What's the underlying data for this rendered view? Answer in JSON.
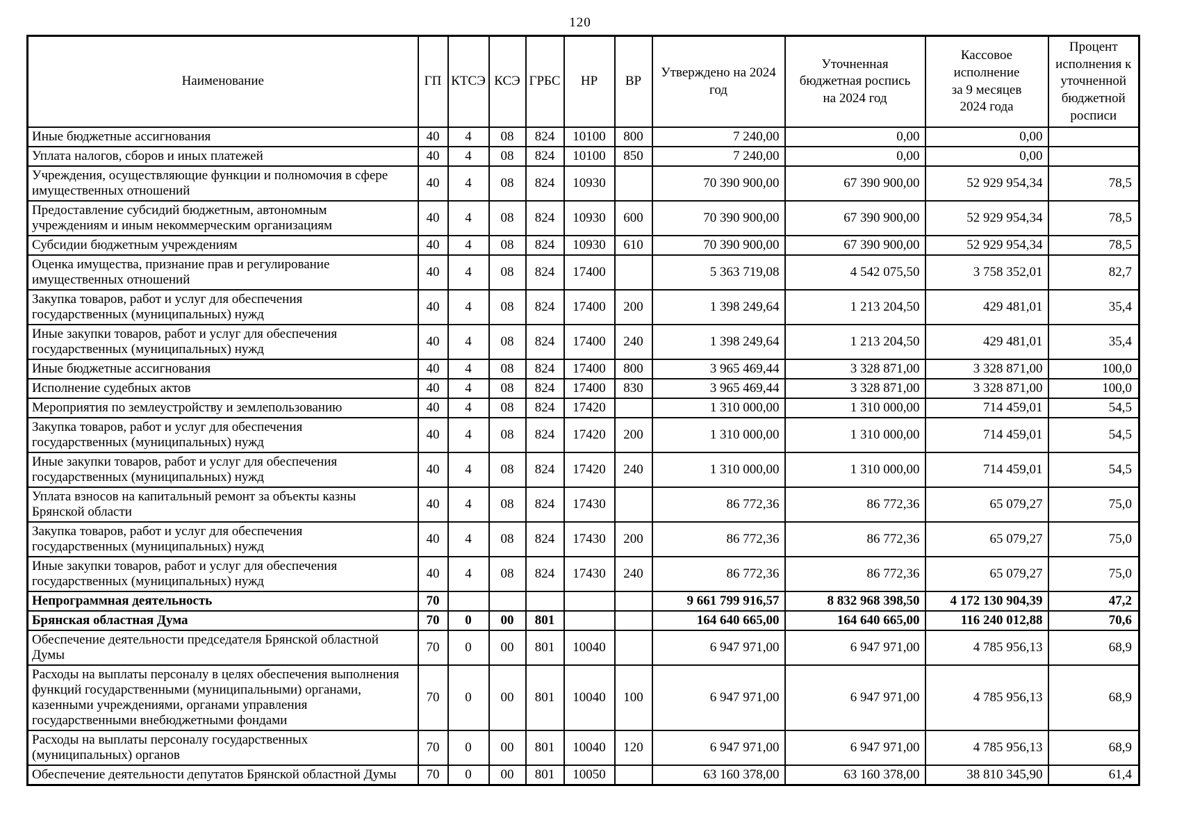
{
  "page_number": "120",
  "table": {
    "headers": [
      "Наименование",
      "ГП",
      "КТСЭ",
      "КСЭ",
      "ГРБС",
      "НР",
      "ВР",
      "Утверждено на 2024\nгод",
      "Уточненная\nбюджетная роспись\nна 2024 год",
      "Кассовое\nисполнение\nза 9 месяцев\n2024 года",
      "Процент\nисполнения к\nуточненной\nбюджетной\nросписи"
    ],
    "rows": [
      {
        "name": "Иные бюджетные ассигнования",
        "gp": "40",
        "ktse": "4",
        "kse": "08",
        "grbs": "824",
        "nr": "10100",
        "vr": "800",
        "approved": "7 240,00",
        "revised": "0,00",
        "cash": "0,00",
        "percent": "",
        "bold": false
      },
      {
        "name": "Уплата налогов, сборов и иных платежей",
        "gp": "40",
        "ktse": "4",
        "kse": "08",
        "grbs": "824",
        "nr": "10100",
        "vr": "850",
        "approved": "7 240,00",
        "revised": "0,00",
        "cash": "0,00",
        "percent": "",
        "bold": false
      },
      {
        "name": "Учреждения, осуществляющие функции и полномочия в сфере\nимущественных отношений",
        "gp": "40",
        "ktse": "4",
        "kse": "08",
        "grbs": "824",
        "nr": "10930",
        "vr": "",
        "approved": "70 390 900,00",
        "revised": "67 390 900,00",
        "cash": "52 929 954,34",
        "percent": "78,5",
        "bold": false
      },
      {
        "name": "Предоставление субсидий бюджетным, автономным\nучреждениям и иным некоммерческим организациям",
        "gp": "40",
        "ktse": "4",
        "kse": "08",
        "grbs": "824",
        "nr": "10930",
        "vr": "600",
        "approved": "70 390 900,00",
        "revised": "67 390 900,00",
        "cash": "52 929 954,34",
        "percent": "78,5",
        "bold": false
      },
      {
        "name": "Субсидии бюджетным учреждениям",
        "gp": "40",
        "ktse": "4",
        "kse": "08",
        "grbs": "824",
        "nr": "10930",
        "vr": "610",
        "approved": "70 390 900,00",
        "revised": "67 390 900,00",
        "cash": "52 929 954,34",
        "percent": "78,5",
        "bold": false
      },
      {
        "name": "Оценка имущества, признание прав и регулирование\nимущественных отношений",
        "gp": "40",
        "ktse": "4",
        "kse": "08",
        "grbs": "824",
        "nr": "17400",
        "vr": "",
        "approved": "5 363 719,08",
        "revised": "4 542 075,50",
        "cash": "3 758 352,01",
        "percent": "82,7",
        "bold": false
      },
      {
        "name": "Закупка товаров, работ и услуг для обеспечения\nгосударственных (муниципальных) нужд",
        "gp": "40",
        "ktse": "4",
        "kse": "08",
        "grbs": "824",
        "nr": "17400",
        "vr": "200",
        "approved": "1 398 249,64",
        "revised": "1 213 204,50",
        "cash": "429 481,01",
        "percent": "35,4",
        "bold": false
      },
      {
        "name": "Иные закупки товаров, работ и услуг для обеспечения\nгосударственных (муниципальных) нужд",
        "gp": "40",
        "ktse": "4",
        "kse": "08",
        "grbs": "824",
        "nr": "17400",
        "vr": "240",
        "approved": "1 398 249,64",
        "revised": "1 213 204,50",
        "cash": "429 481,01",
        "percent": "35,4",
        "bold": false
      },
      {
        "name": "Иные бюджетные ассигнования",
        "gp": "40",
        "ktse": "4",
        "kse": "08",
        "grbs": "824",
        "nr": "17400",
        "vr": "800",
        "approved": "3 965 469,44",
        "revised": "3 328 871,00",
        "cash": "3 328 871,00",
        "percent": "100,0",
        "bold": false
      },
      {
        "name": "Исполнение судебных актов",
        "gp": "40",
        "ktse": "4",
        "kse": "08",
        "grbs": "824",
        "nr": "17400",
        "vr": "830",
        "approved": "3 965 469,44",
        "revised": "3 328 871,00",
        "cash": "3 328 871,00",
        "percent": "100,0",
        "bold": false
      },
      {
        "name": "Мероприятия по землеустройству и землепользованию",
        "gp": "40",
        "ktse": "4",
        "kse": "08",
        "grbs": "824",
        "nr": "17420",
        "vr": "",
        "approved": "1 310 000,00",
        "revised": "1 310 000,00",
        "cash": "714 459,01",
        "percent": "54,5",
        "bold": false
      },
      {
        "name": "Закупка товаров, работ и услуг для обеспечения\nгосударственных (муниципальных) нужд",
        "gp": "40",
        "ktse": "4",
        "kse": "08",
        "grbs": "824",
        "nr": "17420",
        "vr": "200",
        "approved": "1 310 000,00",
        "revised": "1 310 000,00",
        "cash": "714 459,01",
        "percent": "54,5",
        "bold": false
      },
      {
        "name": "Иные закупки товаров, работ и услуг для обеспечения\nгосударственных (муниципальных) нужд",
        "gp": "40",
        "ktse": "4",
        "kse": "08",
        "grbs": "824",
        "nr": "17420",
        "vr": "240",
        "approved": "1 310 000,00",
        "revised": "1 310 000,00",
        "cash": "714 459,01",
        "percent": "54,5",
        "bold": false
      },
      {
        "name": "Уплата взносов на капитальный ремонт за объекты казны\nБрянской области",
        "gp": "40",
        "ktse": "4",
        "kse": "08",
        "grbs": "824",
        "nr": "17430",
        "vr": "",
        "approved": "86 772,36",
        "revised": "86 772,36",
        "cash": "65 079,27",
        "percent": "75,0",
        "bold": false
      },
      {
        "name": "Закупка товаров, работ и услуг для обеспечения\nгосударственных (муниципальных) нужд",
        "gp": "40",
        "ktse": "4",
        "kse": "08",
        "grbs": "824",
        "nr": "17430",
        "vr": "200",
        "approved": "86 772,36",
        "revised": "86 772,36",
        "cash": "65 079,27",
        "percent": "75,0",
        "bold": false
      },
      {
        "name": "Иные закупки товаров, работ и услуг для обеспечения\nгосударственных (муниципальных) нужд",
        "gp": "40",
        "ktse": "4",
        "kse": "08",
        "grbs": "824",
        "nr": "17430",
        "vr": "240",
        "approved": "86 772,36",
        "revised": "86 772,36",
        "cash": "65 079,27",
        "percent": "75,0",
        "bold": false
      },
      {
        "name": "Непрограммная деятельность",
        "gp": "70",
        "ktse": "",
        "kse": "",
        "grbs": "",
        "nr": "",
        "vr": "",
        "approved": "9 661 799 916,57",
        "revised": "8 832 968 398,50",
        "cash": "4 172 130 904,39",
        "percent": "47,2",
        "bold": true
      },
      {
        "name": "Брянская областная Дума",
        "gp": "70",
        "ktse": "0",
        "kse": "00",
        "grbs": "801",
        "nr": "",
        "vr": "",
        "approved": "164 640 665,00",
        "revised": "164 640 665,00",
        "cash": "116 240 012,88",
        "percent": "70,6",
        "bold": true
      },
      {
        "name": "Обеспечение деятельности председателя Брянской областной\nДумы",
        "gp": "70",
        "ktse": "0",
        "kse": "00",
        "grbs": "801",
        "nr": "10040",
        "vr": "",
        "approved": "6 947 971,00",
        "revised": "6 947 971,00",
        "cash": "4 785 956,13",
        "percent": "68,9",
        "bold": false
      },
      {
        "name": "Расходы на выплаты персоналу в целях обеспечения выполнения\nфункций государственными (муниципальными) органами,\nказенными учреждениями, органами управления\nгосударственными внебюджетными фондами",
        "gp": "70",
        "ktse": "0",
        "kse": "00",
        "grbs": "801",
        "nr": "10040",
        "vr": "100",
        "approved": "6 947 971,00",
        "revised": "6 947 971,00",
        "cash": "4 785 956,13",
        "percent": "68,9",
        "bold": false
      },
      {
        "name": "Расходы на выплаты персоналу государственных\n(муниципальных) органов",
        "gp": "70",
        "ktse": "0",
        "kse": "00",
        "grbs": "801",
        "nr": "10040",
        "vr": "120",
        "approved": "6 947 971,00",
        "revised": "6 947 971,00",
        "cash": "4 785 956,13",
        "percent": "68,9",
        "bold": false
      },
      {
        "name": "Обеспечение деятельности депутатов Брянской областной Думы",
        "gp": "70",
        "ktse": "0",
        "kse": "00",
        "grbs": "801",
        "nr": "10050",
        "vr": "",
        "approved": "63 160 378,00",
        "revised": "63 160 378,00",
        "cash": "38 810 345,90",
        "percent": "61,4",
        "bold": false
      }
    ]
  }
}
